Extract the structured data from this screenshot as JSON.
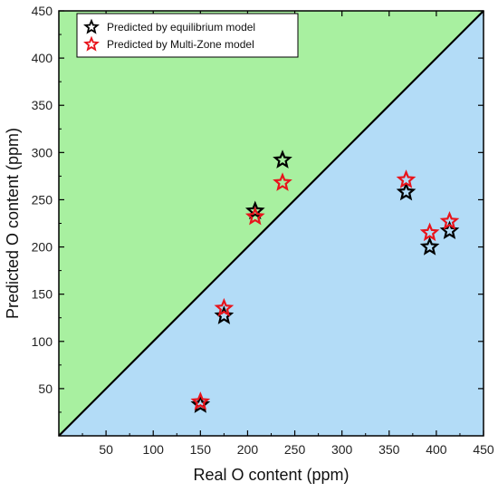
{
  "chart_data": {
    "type": "scatter",
    "title": "",
    "xlabel": "Real O content (ppm)",
    "ylabel": "Predicted O content (ppm)",
    "xlim": [
      0,
      450
    ],
    "ylim": [
      0,
      450
    ],
    "xticks": [
      50,
      100,
      150,
      200,
      250,
      300,
      350,
      400,
      450
    ],
    "yticks": [
      50,
      100,
      150,
      200,
      250,
      300,
      350,
      400,
      450
    ],
    "grid": false,
    "legend_position": "top-left",
    "diagonal": {
      "from": [
        0,
        0
      ],
      "to": [
        450,
        450
      ],
      "color": "#000000"
    },
    "regions": [
      {
        "label": "above diagonal",
        "color": "#a8f0a0"
      },
      {
        "label": "below diagonal",
        "color": "#b3dcf7"
      }
    ],
    "series": [
      {
        "name": "Predicted by equilibrium model",
        "color": "#000000",
        "marker": "star-outline",
        "points": [
          {
            "x": 150,
            "y": 33
          },
          {
            "x": 175,
            "y": 127
          },
          {
            "x": 208,
            "y": 238
          },
          {
            "x": 237,
            "y": 292
          },
          {
            "x": 368,
            "y": 258
          },
          {
            "x": 393,
            "y": 200
          },
          {
            "x": 414,
            "y": 217
          }
        ]
      },
      {
        "name": "Predicted by Multi-Zone model",
        "color": "#e8141c",
        "marker": "star-outline",
        "points": [
          {
            "x": 150,
            "y": 36
          },
          {
            "x": 175,
            "y": 135
          },
          {
            "x": 208,
            "y": 232
          },
          {
            "x": 237,
            "y": 268
          },
          {
            "x": 368,
            "y": 271
          },
          {
            "x": 393,
            "y": 215
          },
          {
            "x": 414,
            "y": 227
          }
        ]
      }
    ]
  }
}
